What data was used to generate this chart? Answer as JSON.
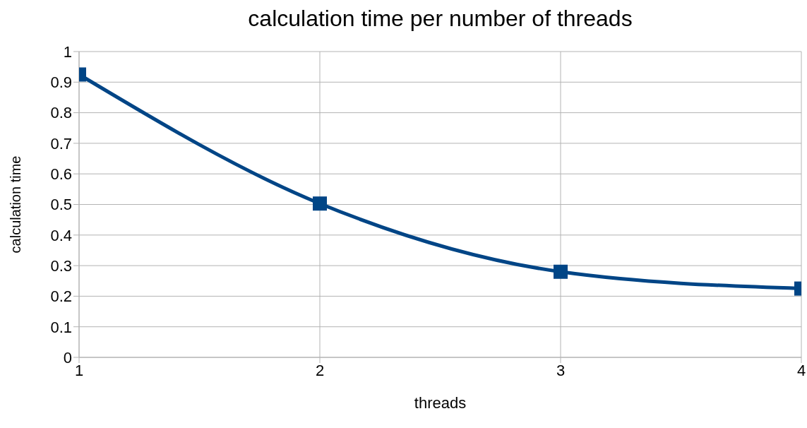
{
  "chart_data": {
    "type": "line",
    "title": "calculation time per number of threads",
    "xlabel": "threads",
    "ylabel": "calculation time",
    "x": [
      1,
      2,
      3,
      4
    ],
    "series": [
      {
        "color": "#004586",
        "values": [
          0.925,
          0.503,
          0.28,
          0.225
        ]
      }
    ],
    "xlim": [
      1,
      4
    ],
    "xticks": [
      1,
      2,
      3,
      4
    ],
    "ylim": [
      0,
      1
    ],
    "yticks": [
      0,
      0.1,
      0.2,
      0.3,
      0.4,
      0.5,
      0.6,
      0.7,
      0.8,
      0.9,
      1
    ],
    "grid": true,
    "legend": false,
    "marker": "square",
    "line_style": "solid"
  }
}
